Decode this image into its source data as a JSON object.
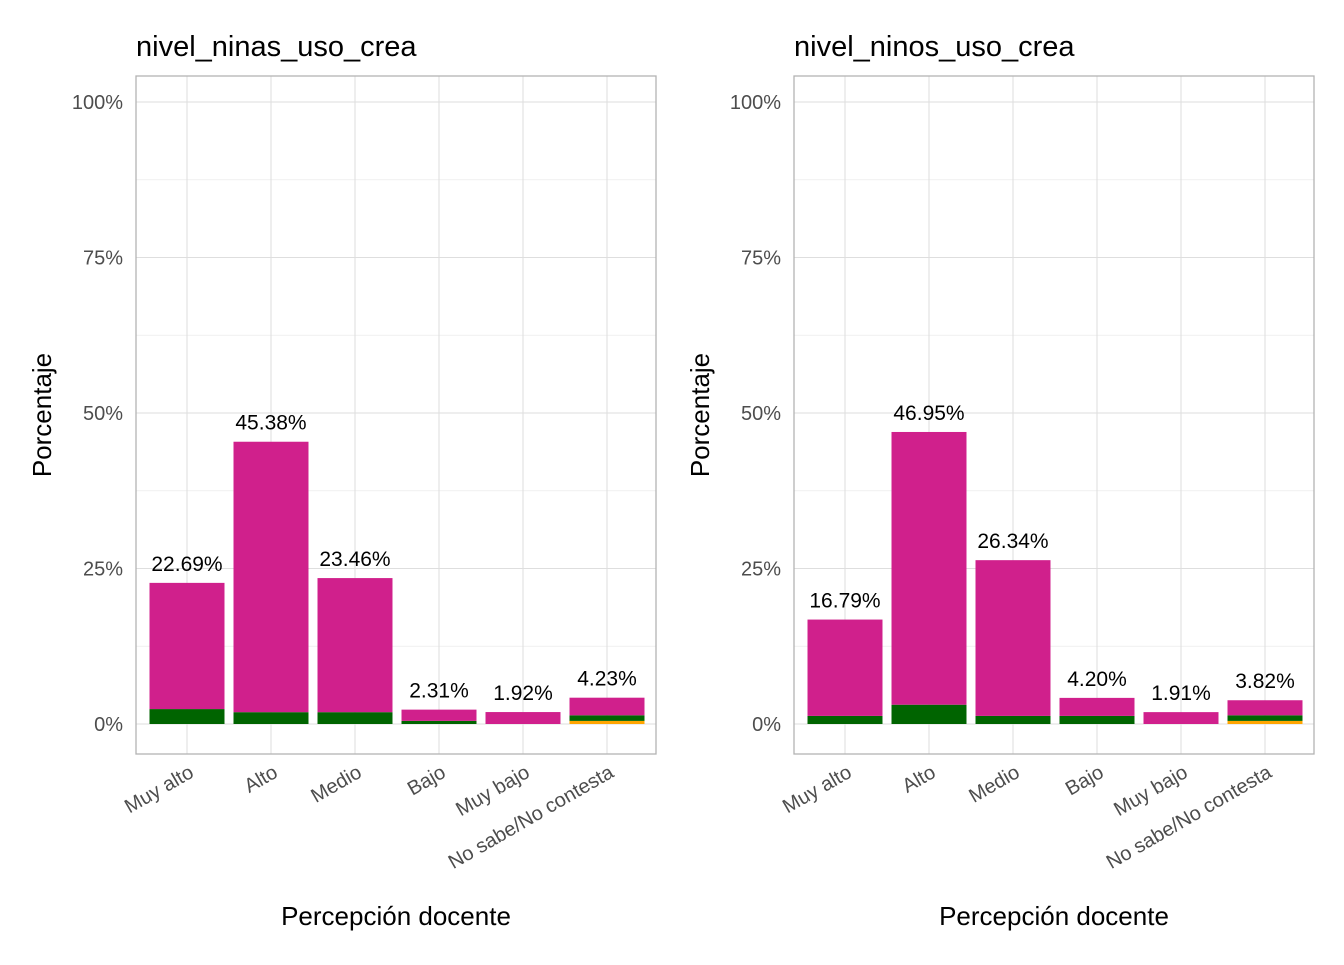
{
  "chart_data": [
    {
      "type": "bar",
      "stacked": true,
      "title": "nivel_ninas_uso_crea",
      "xlabel": "Percepción docente",
      "ylabel": "Porcentaje",
      "ylim": [
        0,
        100
      ],
      "yticks": [
        "0%",
        "25%",
        "50%",
        "75%",
        "100%"
      ],
      "ytick_values": [
        0,
        25,
        50,
        75,
        100
      ],
      "categories": [
        "Muy alto",
        "Alto",
        "Medio",
        "Bajo",
        "Muy bajo",
        "No sabe/No contesta"
      ],
      "totals": [
        22.69,
        45.38,
        23.46,
        2.31,
        1.92,
        4.23
      ],
      "labels": [
        "22.69%",
        "45.38%",
        "23.46%",
        "2.31%",
        "1.92%",
        "4.23%"
      ],
      "series": [
        {
          "color": "#ffa500",
          "values": [
            0,
            0,
            0,
            0,
            0,
            0.5
          ]
        },
        {
          "color": "#006400",
          "values": [
            2.4,
            1.9,
            1.9,
            0.5,
            0,
            0.9
          ]
        },
        {
          "color": "#d0208c",
          "values": [
            20.29,
            43.48,
            21.56,
            1.81,
            1.92,
            2.83
          ]
        }
      ],
      "grid": true
    },
    {
      "type": "bar",
      "stacked": true,
      "title": "nivel_ninos_uso_crea",
      "xlabel": "Percepción docente",
      "ylabel": "Porcentaje",
      "ylim": [
        0,
        100
      ],
      "yticks": [
        "0%",
        "25%",
        "50%",
        "75%",
        "100%"
      ],
      "ytick_values": [
        0,
        25,
        50,
        75,
        100
      ],
      "categories": [
        "Muy alto",
        "Alto",
        "Medio",
        "Bajo",
        "Muy bajo",
        "No sabe/No contesta"
      ],
      "totals": [
        16.79,
        46.95,
        26.34,
        4.2,
        1.91,
        3.82
      ],
      "labels": [
        "16.79%",
        "46.95%",
        "26.34%",
        "4.20%",
        "1.91%",
        "3.82%"
      ],
      "series": [
        {
          "color": "#ffa500",
          "values": [
            0,
            0,
            0,
            0,
            0,
            0.5
          ]
        },
        {
          "color": "#006400",
          "values": [
            1.3,
            3.1,
            1.3,
            1.3,
            0,
            0.9
          ]
        },
        {
          "color": "#d0208c",
          "values": [
            15.49,
            43.85,
            25.04,
            2.9,
            1.91,
            2.42
          ]
        }
      ],
      "grid": true
    }
  ]
}
